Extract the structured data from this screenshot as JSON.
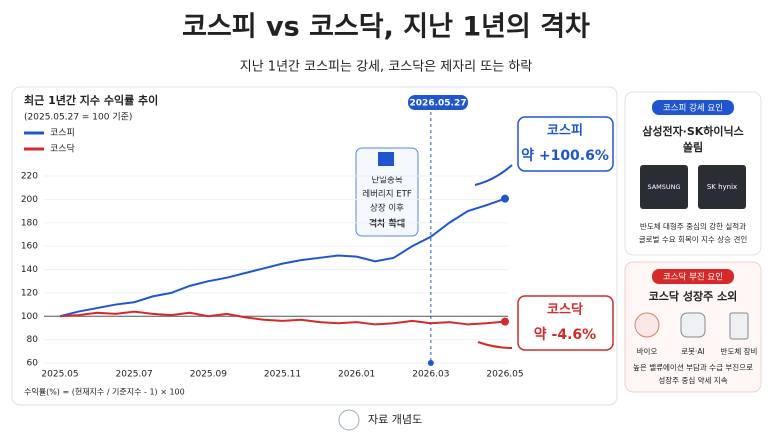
{
  "header": {
    "title": "코스피 vs 코스닥, 지난 1년의 격차",
    "subtitle": "지난 1년간 코스피는 강세, 코스닥은 제자리 또는 하락"
  },
  "chart_data": {
    "type": "line",
    "title": "최근 1년간 지수 수익률 추이",
    "subtitle": "(2025.05.27 = 100 기준)",
    "categories": [
      "2025.05",
      null,
      null,
      null,
      "2025.07",
      null,
      null,
      null,
      "2025.09",
      null,
      null,
      null,
      "2025.11",
      null,
      null,
      null,
      "2026.01",
      null,
      null,
      null,
      "2026.03",
      null,
      null,
      null,
      "2026.05"
    ],
    "series": [
      {
        "name": "코스피",
        "color": "#1f56d0",
        "values": [
          100,
          104,
          107,
          110,
          112,
          117,
          120,
          126,
          130,
          133,
          137,
          141,
          145,
          148,
          150,
          152,
          151,
          147,
          150,
          160,
          168,
          180,
          190,
          195,
          200.6
        ]
      },
      {
        "name": "코스닥",
        "color": "#d42a2a",
        "values": [
          100,
          101,
          103,
          102,
          104,
          102,
          101,
          103,
          100,
          102,
          99,
          97,
          96,
          97,
          95,
          94,
          95,
          93,
          94,
          96,
          94,
          95,
          93,
          94,
          95.4
        ]
      }
    ],
    "ylim": [
      60,
      220
    ],
    "yticks": [
      60,
      80,
      100,
      120,
      140,
      160,
      180,
      200,
      220
    ],
    "marker_label": "2026.05.27",
    "annotation": [
      "단일종목",
      "레버리지 ETF",
      "상장 이후",
      "격차 확대"
    ],
    "callouts": [
      {
        "name": "코스피",
        "text": "약 +100.6%"
      },
      {
        "name": "코스닥",
        "text": "약 -4.6%"
      }
    ],
    "footnote": "수익률(%) = (현재지수 / 기준지수 - 1) × 100"
  },
  "side_panels": [
    {
      "tag": "코스피 강세 요인",
      "title": [
        "삼성전자·SK하이닉스",
        "쏠림"
      ],
      "items": [
        "SAMSUNG",
        "SK hynix"
      ],
      "desc": [
        "반도체 대형주 중심의 강한 실적과",
        "글로벌 수요 회복이 지수 상승 견인"
      ]
    },
    {
      "tag": "코스닥 부진 요인",
      "title": [
        "코스닥 성장주 소외"
      ],
      "items": [
        "바이오",
        "로봇·AI",
        "반도체 장비"
      ],
      "desc": [
        "높은 밸류에이션 부담과 수급 부진으로",
        "성장주 중심 약세 지속"
      ]
    }
  ],
  "footer": "자료 개념도"
}
